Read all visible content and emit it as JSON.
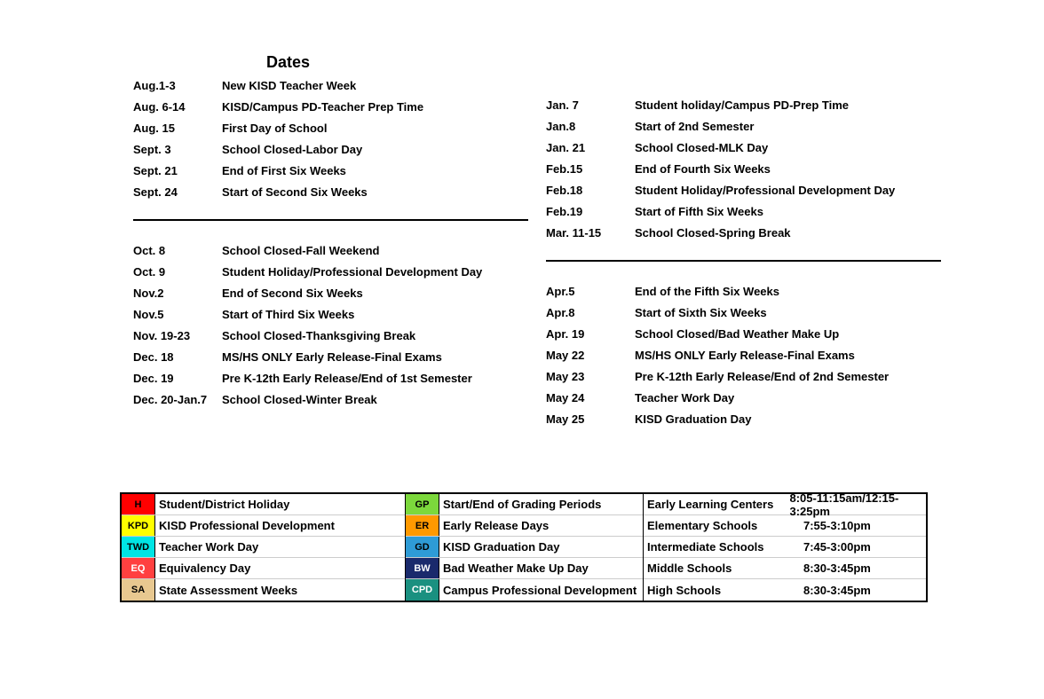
{
  "title": "Dates",
  "col1_block1": [
    {
      "date": "Aug.1-3",
      "text": "New KISD Teacher Week"
    },
    {
      "date": "Aug. 6-14",
      "text": "KISD/Campus PD-Teacher Prep Time"
    },
    {
      "date": "Aug. 15",
      "text": "First Day of School"
    },
    {
      "date": "Sept. 3",
      "text": "School Closed-Labor Day"
    },
    {
      "date": "Sept. 21",
      "text": "End of First Six Weeks"
    },
    {
      "date": "Sept. 24",
      "text": "Start of Second Six Weeks"
    }
  ],
  "col1_block2": [
    {
      "date": "Oct. 8",
      "text": "School Closed-Fall Weekend"
    },
    {
      "date": "Oct. 9",
      "text": "Student Holiday/Professional Development Day"
    },
    {
      "date": "Nov.2",
      "text": "End of Second Six Weeks"
    },
    {
      "date": "Nov.5",
      "text": "Start of Third Six Weeks"
    },
    {
      "date": "Nov. 19-23",
      "text": "School Closed-Thanksgiving Break"
    },
    {
      "date": "Dec. 18",
      "text": "MS/HS ONLY Early Release-Final Exams"
    },
    {
      "date": "Dec. 19",
      "text": "Pre K-12th Early Release/End of 1st Semester"
    },
    {
      "date": "Dec. 20-Jan.7",
      "text": "School Closed-Winter Break"
    }
  ],
  "col2_block1": [
    {
      "date": "Jan. 7",
      "text": "Student holiday/Campus PD-Prep Time"
    },
    {
      "date": "Jan.8",
      "text": "Start of 2nd Semester"
    },
    {
      "date": "Jan. 21",
      "text": "School Closed-MLK Day"
    },
    {
      "date": "Feb.15",
      "text": "End of Fourth Six Weeks"
    },
    {
      "date": "Feb.18",
      "text": "Student Holiday/Professional Development Day"
    },
    {
      "date": "Feb.19",
      "text": "Start of Fifth Six Weeks"
    },
    {
      "date": "Mar. 11-15",
      "text": "School Closed-Spring Break"
    }
  ],
  "col2_block2": [
    {
      "date": "Apr.5",
      "text": "End of the Fifth Six Weeks"
    },
    {
      "date": "Apr.8",
      "text": "Start of Sixth Six Weeks"
    },
    {
      "date": "Apr. 19",
      "text": "School Closed/Bad Weather Make Up"
    },
    {
      "date": "May 22",
      "text": "MS/HS ONLY Early Release-Final Exams"
    },
    {
      "date": "May 23",
      "text": "Pre K-12th Early Release/End of 2nd Semester"
    },
    {
      "date": "May 24",
      "text": "Teacher Work Day"
    },
    {
      "date": "May 25",
      "text": "KISD Graduation Day"
    }
  ],
  "legend1": [
    {
      "code": "H",
      "bg": "#ff0000",
      "desc": "Student/District Holiday"
    },
    {
      "code": "KPD",
      "bg": "#ffff00",
      "desc": "KISD Professional Development"
    },
    {
      "code": "TWD",
      "bg": "#00e5e5",
      "desc": "Teacher Work Day"
    },
    {
      "code": "EQ",
      "bg": "#ff4040",
      "fg": "#ffffff",
      "desc": "Equivalency Day"
    },
    {
      "code": "SA",
      "bg": "#e8c890",
      "desc": "State Assessment Weeks"
    }
  ],
  "legend2": [
    {
      "code": "GP",
      "bg": "#7cd83c",
      "desc": "Start/End of Grading Periods"
    },
    {
      "code": "ER",
      "bg": "#ff9900",
      "desc": "Early Release Days"
    },
    {
      "code": "GD",
      "bg": "#2e9bd6",
      "desc": "KISD Graduation Day"
    },
    {
      "code": "BW",
      "bg": "#1a2a6c",
      "fg": "#ffffff",
      "desc": "Bad Weather Make Up Day"
    },
    {
      "code": "CPD",
      "bg": "#1a9080",
      "fg": "#ffffff",
      "desc": "Campus Professional Development"
    }
  ],
  "schools": [
    {
      "name": "Early Learning Centers",
      "hours": "8:05-11:15am/12:15-3:25pm"
    },
    {
      "name": "Elementary Schools",
      "hours": "7:55-3:10pm"
    },
    {
      "name": "Intermediate Schools",
      "hours": "7:45-3:00pm"
    },
    {
      "name": "Middle Schools",
      "hours": "8:30-3:45pm"
    },
    {
      "name": "High Schools",
      "hours": "8:30-3:45pm"
    }
  ]
}
